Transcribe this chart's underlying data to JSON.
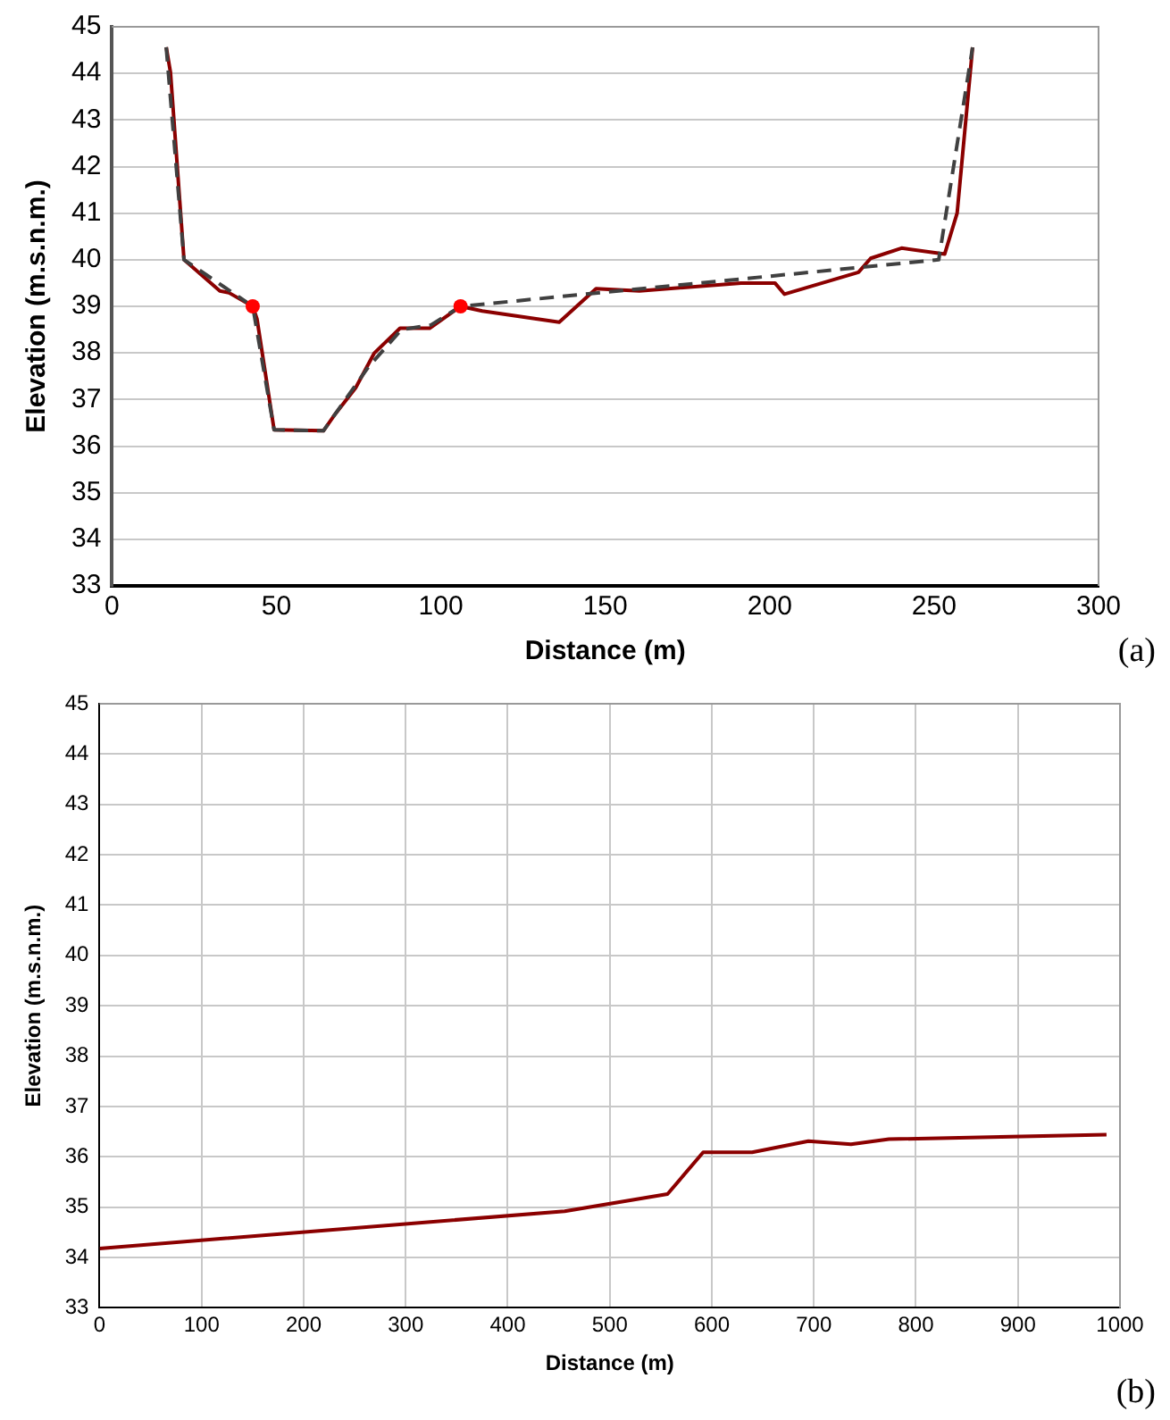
{
  "chart_data": [
    {
      "type": "line",
      "xlabel": "Distance (m)",
      "ylabel": "Elevation (m.s.n.m.)",
      "annotations": [
        "(a)"
      ],
      "xlim": [
        0,
        300
      ],
      "xticks": [
        0,
        50,
        100,
        150,
        200,
        250,
        300
      ],
      "ylim": [
        33,
        45
      ],
      "yticks": [
        33,
        34,
        35,
        36,
        37,
        38,
        39,
        40,
        41,
        42,
        43,
        44,
        45
      ],
      "grid": "y",
      "legend": false,
      "marker": "none",
      "series": [
        {
          "type": "line",
          "line_style": "dashed",
          "color": "#404040",
          "x": [
            16.5,
            21.9,
            42.8,
            49.3,
            64.3,
            78,
            88,
            97,
            106,
            251.4,
            261.7
          ],
          "values": [
            44.56,
            40.0,
            39.0,
            36.35,
            36.33,
            37.7,
            38.5,
            38.6,
            39.0,
            40.0,
            44.56
          ]
        },
        {
          "type": "line",
          "line_style": "solid",
          "color": "#8b0000",
          "x": [
            16.5,
            17.8,
            21.9,
            32.8,
            35.6,
            42.8,
            44.1,
            49.3,
            64.3,
            67.5,
            74.1,
            79.7,
            87.6,
            96.6,
            106.0,
            112.6,
            136.0,
            147.2,
            160.4,
            191.3,
            201.6,
            204.5,
            227.0,
            230.7,
            240.1,
            253.2,
            257.0,
            261.7
          ],
          "values": [
            44.56,
            44.02,
            40.0,
            39.33,
            39.29,
            39.0,
            38.73,
            36.35,
            36.33,
            36.65,
            37.25,
            37.99,
            38.53,
            38.53,
            39.0,
            38.9,
            38.66,
            39.38,
            39.33,
            39.5,
            39.5,
            39.26,
            39.73,
            40.03,
            40.25,
            40.12,
            41.0,
            44.56
          ]
        },
        {
          "type": "scatter",
          "marker": "circle",
          "color": "#ff0000",
          "x": [
            42.8,
            106.0
          ],
          "values": [
            39.0,
            39.0
          ]
        }
      ]
    },
    {
      "type": "line",
      "xlabel": "Distance (m)",
      "ylabel": "Elevation (m.s.n.m.)",
      "annotations": [
        "(b)"
      ],
      "xlim": [
        0,
        1000
      ],
      "xticks": [
        0,
        100,
        200,
        300,
        400,
        500,
        600,
        700,
        800,
        900,
        1000
      ],
      "ylim": [
        33,
        45
      ],
      "yticks": [
        33,
        34,
        35,
        36,
        37,
        38,
        39,
        40,
        41,
        42,
        43,
        44,
        45
      ],
      "grid": true,
      "legend": false,
      "marker": "none",
      "series": [
        {
          "type": "line",
          "line_style": "solid",
          "color": "#8b0000",
          "x": [
            0,
            455.8,
            556.6,
            591.5,
            639.5,
            694.6,
            736.4,
            773.6,
            986.8
          ],
          "values": [
            34.18,
            34.92,
            35.26,
            36.09,
            36.09,
            36.31,
            36.25,
            36.35,
            36.44
          ]
        }
      ]
    }
  ]
}
